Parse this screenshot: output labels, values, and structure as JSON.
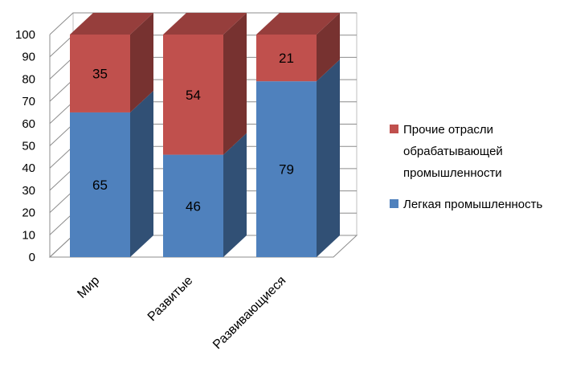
{
  "chart_data": {
    "type": "bar",
    "stacked": true,
    "percent": true,
    "three_d": true,
    "categories": [
      "Мир",
      "Развитые",
      "Развивающиеся"
    ],
    "series": [
      {
        "name": "Легкая промышленность",
        "values": [
          65,
          46,
          79
        ],
        "color": "#4F81BD"
      },
      {
        "name": "Прочие отрасли обрабатывающей промышленности",
        "values": [
          35,
          54,
          21
        ],
        "color": "#C0504D"
      }
    ],
    "ylim": [
      0,
      100
    ],
    "yticks": [
      0,
      10,
      20,
      30,
      40,
      50,
      60,
      70,
      80,
      90,
      100
    ],
    "grid": true,
    "legend_position": "right",
    "legend_items": [
      {
        "lines": [
          "Прочие отрасли",
          "обрабатывающей",
          "промышленности"
        ],
        "color": "#C0504D"
      },
      {
        "lines": [
          "Легкая промышленность"
        ],
        "color": "#4F81BD"
      }
    ],
    "title": "",
    "xlabel": "",
    "ylabel": ""
  }
}
